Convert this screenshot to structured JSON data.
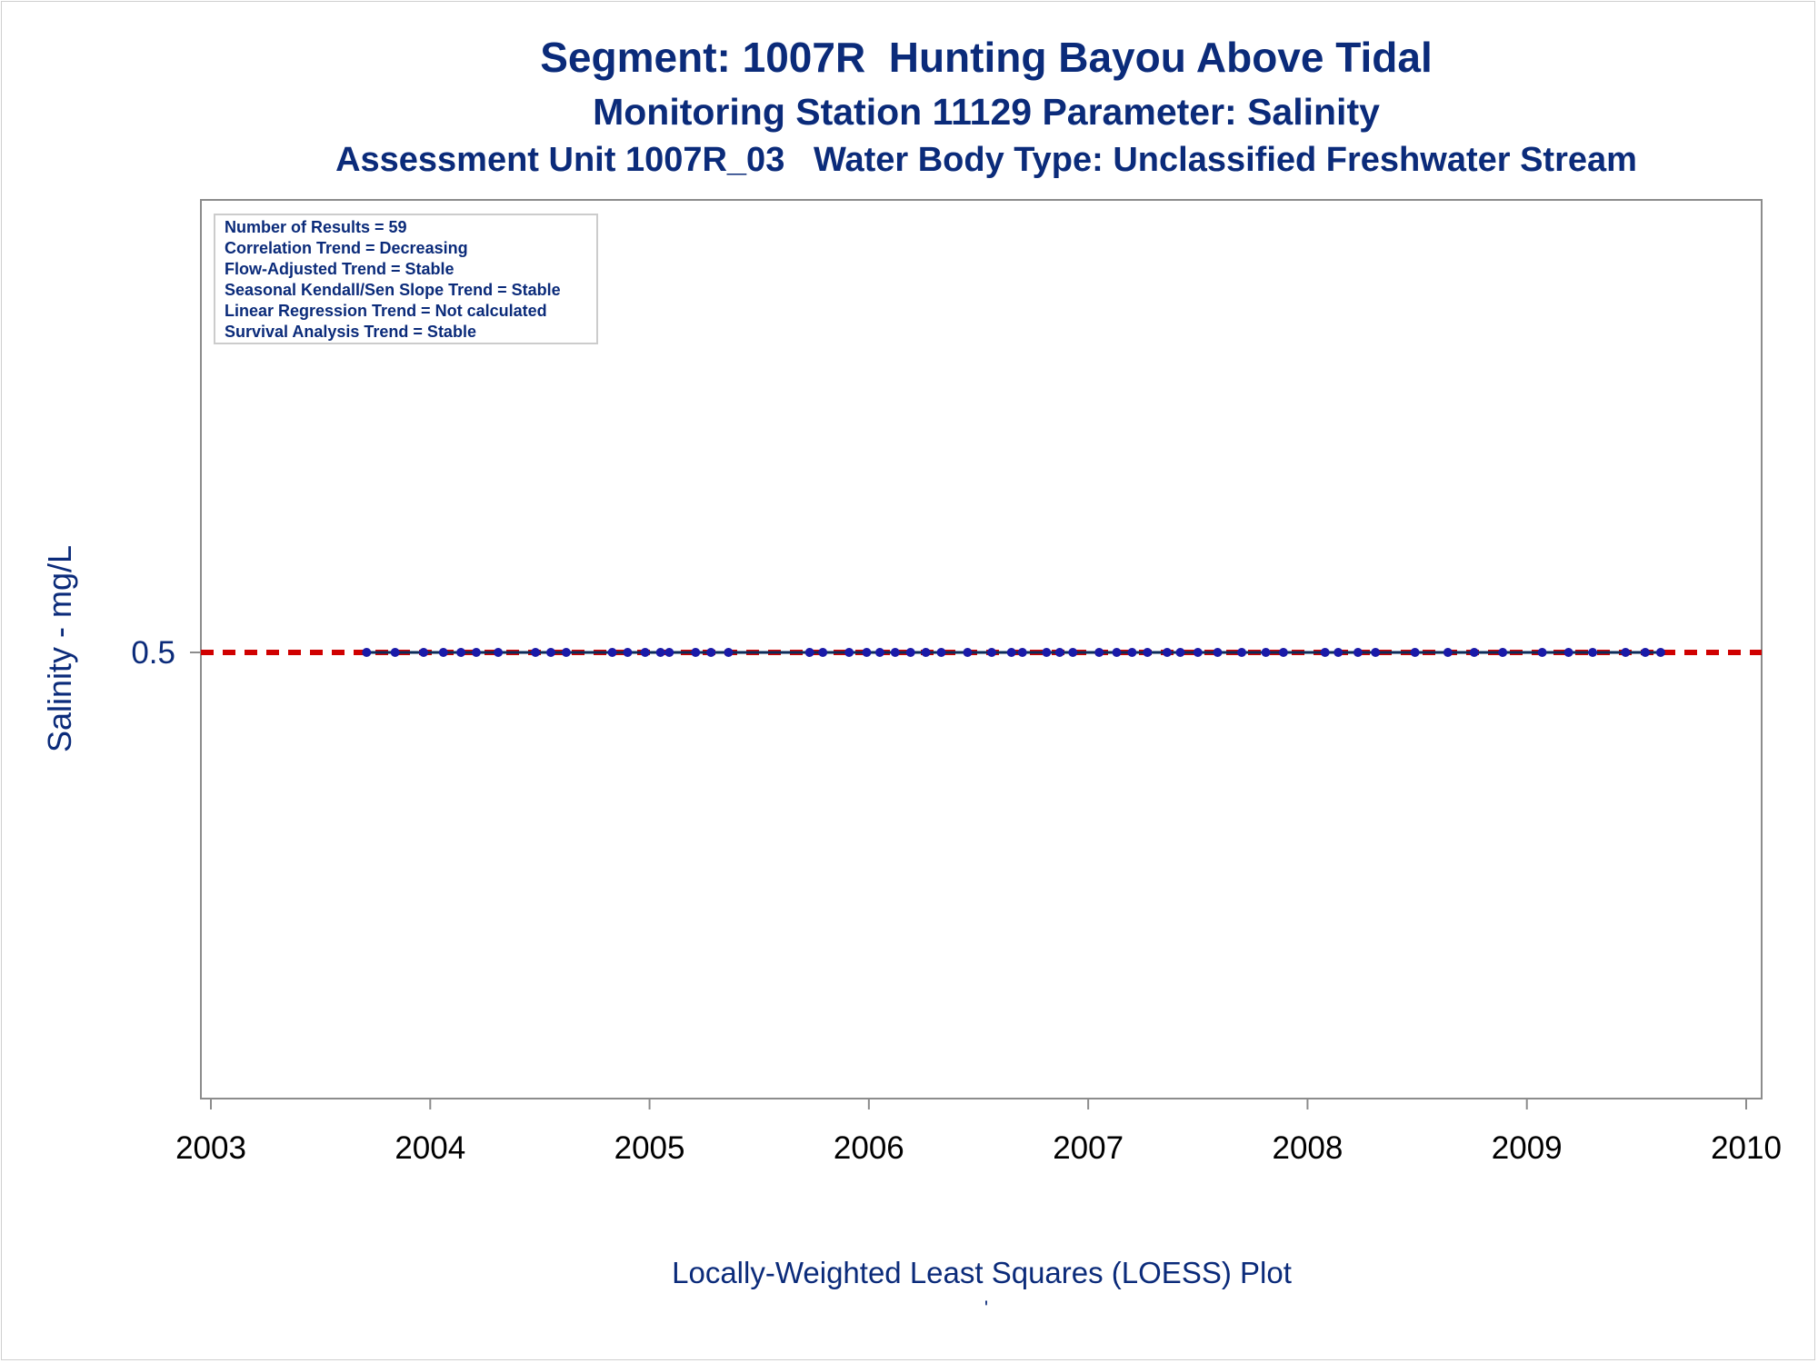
{
  "chart_data": {
    "type": "scatter",
    "title": "Segment: 1007R  Hunting Bayou Above Tidal",
    "subtitle": "Monitoring Station 11129 Parameter: Salinity",
    "subtitle2": "Assessment Unit 1007R_03   Water Body Type: Unclassified Freshwater Stream",
    "xlabel": "Locally-Weighted Least Squares (LOESS) Plot",
    "footnote": "'",
    "ylabel": "Salinity - mg/L",
    "xlim": [
      2003,
      2010
    ],
    "x_ticks": [
      "2003",
      "2004",
      "2005",
      "2006",
      "2007",
      "2008",
      "2009",
      "2010"
    ],
    "y_ticks": [
      {
        "value": 0.5,
        "label": "0.5"
      }
    ],
    "ylim": [
      0,
      1
    ],
    "reference_line": {
      "y": 0.5,
      "style": "dashed",
      "color": "#d00000"
    },
    "stats_box": [
      "Number of Results = 59",
      "Correlation Trend = Decreasing",
      "Flow-Adjusted Trend = Stable",
      "Seasonal Kendall/Sen Slope Trend = Stable",
      "Linear Regression Trend = Not calculated",
      "Survival Analysis Trend = Stable"
    ],
    "series": [
      {
        "color": "#1a1aa8",
        "line_color": "#0b2b5a",
        "points": [
          [
            2003.71,
            0.5
          ],
          [
            2003.84,
            0.5
          ],
          [
            2003.97,
            0.5
          ],
          [
            2004.06,
            0.5
          ],
          [
            2004.14,
            0.5
          ],
          [
            2004.21,
            0.5
          ],
          [
            2004.31,
            0.5
          ],
          [
            2004.48,
            0.5
          ],
          [
            2004.55,
            0.5
          ],
          [
            2004.62,
            0.5
          ],
          [
            2004.83,
            0.5
          ],
          [
            2004.9,
            0.5
          ],
          [
            2004.98,
            0.5
          ],
          [
            2005.05,
            0.5
          ],
          [
            2005.09,
            0.5
          ],
          [
            2005.21,
            0.5
          ],
          [
            2005.28,
            0.5
          ],
          [
            2005.36,
            0.5
          ],
          [
            2005.73,
            0.5
          ],
          [
            2005.79,
            0.5
          ],
          [
            2005.91,
            0.5
          ],
          [
            2005.99,
            0.5
          ],
          [
            2006.05,
            0.5
          ],
          [
            2006.12,
            0.5
          ],
          [
            2006.19,
            0.5
          ],
          [
            2006.26,
            0.5
          ],
          [
            2006.33,
            0.5
          ],
          [
            2006.45,
            0.5
          ],
          [
            2006.56,
            0.5
          ],
          [
            2006.65,
            0.5
          ],
          [
            2006.7,
            0.5
          ],
          [
            2006.81,
            0.5
          ],
          [
            2006.87,
            0.5
          ],
          [
            2006.93,
            0.5
          ],
          [
            2007.05,
            0.5
          ],
          [
            2007.13,
            0.5
          ],
          [
            2007.2,
            0.5
          ],
          [
            2007.27,
            0.5
          ],
          [
            2007.36,
            0.5
          ],
          [
            2007.42,
            0.5
          ],
          [
            2007.5,
            0.5
          ],
          [
            2007.59,
            0.5
          ],
          [
            2007.7,
            0.5
          ],
          [
            2007.81,
            0.5
          ],
          [
            2007.89,
            0.5
          ],
          [
            2008.08,
            0.5
          ],
          [
            2008.14,
            0.5
          ],
          [
            2008.23,
            0.5
          ],
          [
            2008.31,
            0.5
          ],
          [
            2008.49,
            0.5
          ],
          [
            2008.64,
            0.5
          ],
          [
            2008.76,
            0.5
          ],
          [
            2008.89,
            0.5
          ],
          [
            2009.07,
            0.5
          ],
          [
            2009.19,
            0.5
          ],
          [
            2009.3,
            0.5
          ],
          [
            2009.45,
            0.5
          ],
          [
            2009.54,
            0.5
          ],
          [
            2009.61,
            0.5
          ]
        ]
      }
    ]
  }
}
